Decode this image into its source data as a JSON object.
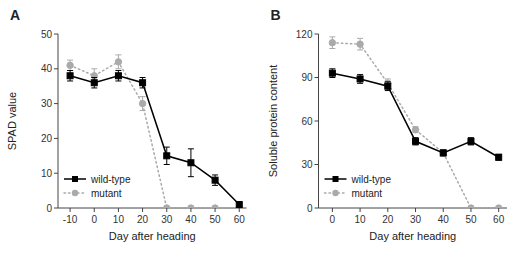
{
  "chart_data": [
    {
      "type": "line",
      "title": "A",
      "xlabel": "Day after heading",
      "ylabel": "SPAD value",
      "x": [
        -10,
        0,
        10,
        20,
        30,
        40,
        50,
        60
      ],
      "series": [
        {
          "name": "wild-type",
          "color": "#000000",
          "marker": "square",
          "line_style": "solid",
          "values": [
            38,
            36,
            38,
            36,
            15,
            13,
            8,
            1
          ],
          "errors": [
            1.5,
            1.5,
            1.5,
            1.5,
            2.5,
            4,
            1.5,
            0.5
          ]
        },
        {
          "name": "mutant",
          "color": "#aaaaaa",
          "marker": "circle",
          "line_style": "dotted",
          "values": [
            41,
            38,
            42,
            30,
            0,
            0,
            0,
            0
          ],
          "errors": [
            1.5,
            2,
            2,
            2,
            0,
            0,
            0,
            0
          ]
        }
      ],
      "xlim": [
        -15,
        63
      ],
      "xticks": [
        -10,
        0,
        10,
        20,
        30,
        40,
        50,
        60
      ],
      "ylim": [
        0,
        50
      ],
      "yticks": [
        0,
        10,
        20,
        30,
        40,
        50
      ],
      "legend": "lower left"
    },
    {
      "type": "line",
      "title": "B",
      "xlabel": "Day after heading",
      "ylabel": "Soluble protein content",
      "x": [
        0,
        10,
        20,
        30,
        40,
        50,
        60
      ],
      "series": [
        {
          "name": "wild-type",
          "color": "#000000",
          "marker": "square",
          "line_style": "solid",
          "values": [
            93,
            89,
            84,
            46,
            38,
            46,
            35
          ],
          "errors": [
            3,
            3,
            3,
            2.5,
            2,
            2.5,
            2
          ]
        },
        {
          "name": "mutant",
          "color": "#aaaaaa",
          "marker": "circle",
          "line_style": "dotted",
          "values": [
            114,
            113,
            86,
            54,
            38,
            0,
            0
          ],
          "errors": [
            4,
            4,
            3,
            2,
            2,
            0,
            0
          ]
        }
      ],
      "xlim": [
        -5,
        63
      ],
      "xticks": [
        0,
        10,
        20,
        30,
        40,
        50,
        60
      ],
      "ylim": [
        0,
        120
      ],
      "yticks": [
        0,
        30,
        60,
        90,
        120
      ],
      "legend": "lower left"
    }
  ]
}
